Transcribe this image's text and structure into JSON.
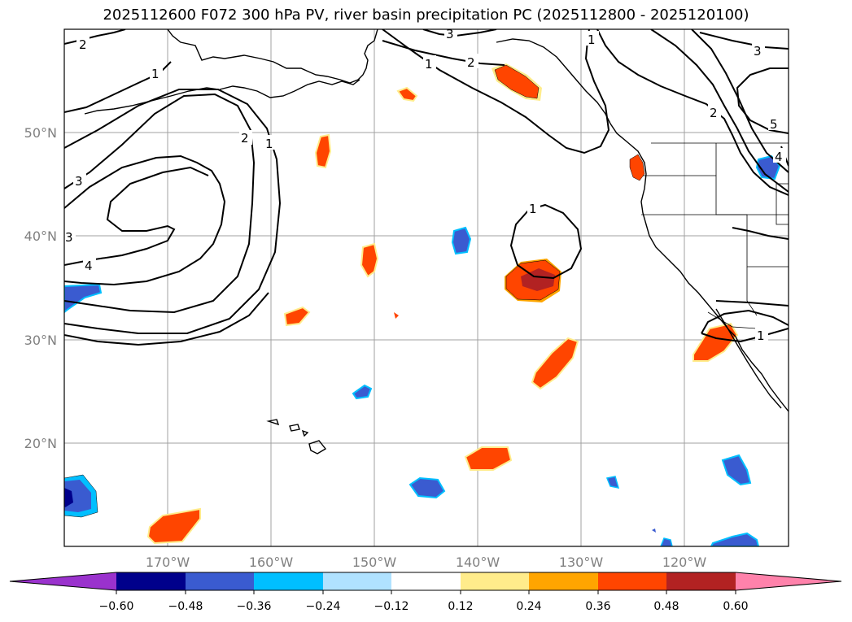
{
  "title": "2025112600 F072 300 hPa PV, river basin precipitation PC (2025112800 - 2025120100)",
  "lon_labels": [
    "170°W",
    "160°W",
    "150°W",
    "140°W",
    "130°W",
    "120°W"
  ],
  "lat_labels": [
    "50°N",
    "40°N",
    "30°N",
    "20°N"
  ],
  "colorbar": {
    "ticks": [
      "−0.60",
      "−0.48",
      "−0.36",
      "−0.24",
      "−0.12",
      "0.12",
      "0.24",
      "0.36",
      "0.48",
      "0.60"
    ],
    "colors": [
      "#9a32cd",
      "#00008b",
      "#3a5bd0",
      "#00bfff",
      "#b0e2ff",
      "#ffffff",
      "#ffec8b",
      "#ffa500",
      "#ff4500",
      "#b22222",
      "#ff82ab"
    ]
  },
  "pv_contour_labels": [
    "2",
    "1",
    "2",
    "1",
    "3",
    "4",
    "3",
    "1",
    "2",
    "1",
    "3",
    "3",
    "2",
    "5",
    "4",
    "1",
    "1"
  ],
  "colors": {
    "contour": "#000000",
    "coast": "#000000",
    "grid": "#a0a0a0",
    "positive_strong": "#ff4500",
    "positive_max": "#b22222",
    "positive_edge": "#ffa500",
    "positive_outer": "#ffec8b",
    "negative_strong": "#3a5bd0",
    "negative_max": "#00008b",
    "negative_edge": "#00bfff",
    "negative_outer": "#b0e2ff"
  }
}
